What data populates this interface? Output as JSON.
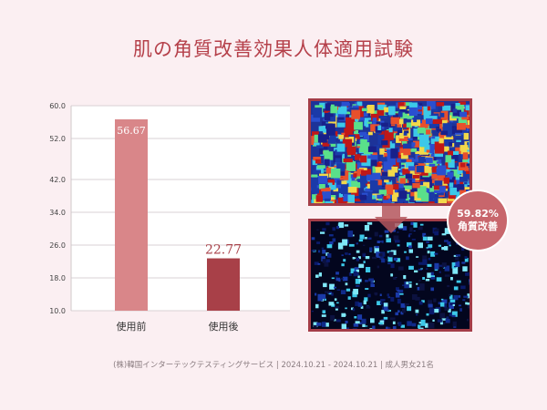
{
  "title": "肌の角質改善効果人体適用試験",
  "badge": {
    "percent": "59.82%",
    "label": "角質改善"
  },
  "images": {
    "before": "before-skin-map",
    "after": "after-skin-map"
  },
  "footer": "(株)韓国インターテックテスティングサービス | 2024.10.21 - 2024.10.21 | 成人男女21名",
  "colors": {
    "title": "#b5404a",
    "bar_before": "#d98689",
    "bar_after": "#a84048",
    "frame": "#a43d48",
    "background": "#fbeff2"
  },
  "chart_data": {
    "type": "bar",
    "categories": [
      "使用前",
      "使用後"
    ],
    "values": [
      56.67,
      22.77
    ],
    "value_labels": [
      "56.67",
      "22.77"
    ],
    "yticks": [
      "60.0",
      "52.0",
      "42.0",
      "34.0",
      "26.0",
      "18.0",
      "10.0"
    ],
    "ytick_values": [
      60,
      52,
      42,
      34,
      26,
      18,
      10
    ],
    "ylim": [
      10,
      60
    ],
    "grid": true
  }
}
